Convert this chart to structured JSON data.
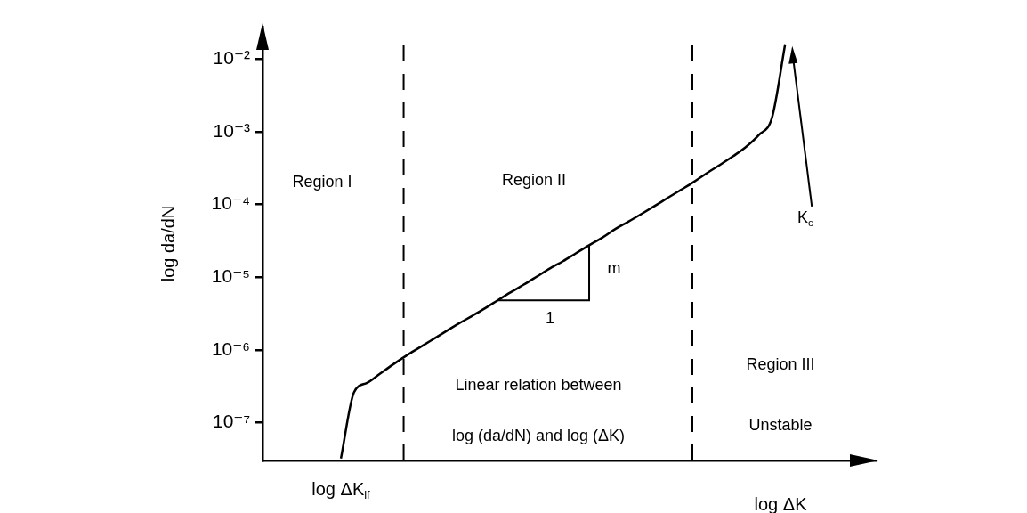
{
  "chart_data": {
    "type": "line",
    "xlabel": "log ΔK",
    "ylabel": "log da/dN",
    "categories": [
      null,
      null,
      null,
      null,
      null,
      null,
      null,
      null,
      null,
      null,
      null,
      null,
      null,
      null,
      null,
      null,
      null,
      null,
      null,
      null,
      null,
      null,
      null,
      null,
      null,
      null,
      null,
      null,
      null,
      null,
      null,
      null,
      null,
      null,
      null,
      null,
      null,
      null,
      null,
      null,
      null,
      null,
      null,
      null,
      null,
      null,
      null,
      null
    ],
    "ylim": [
      3.2e-08,
      0.028
    ],
    "yticks": [
      {
        "value": 1e-07,
        "label": "10⁻⁷"
      },
      {
        "value": 1e-06,
        "label": "10⁻⁶"
      },
      {
        "value": 1e-05,
        "label": "10⁻⁵"
      },
      {
        "value": 0.0001,
        "label": "10⁻⁴"
      },
      {
        "value": 0.001,
        "label": "10⁻³"
      },
      {
        "value": 0.01,
        "label": "10⁻²"
      }
    ],
    "log": "y",
    "grid": false,
    "marker": "none",
    "line_style": "solid",
    "series": [
      {
        "color": "#000000",
        "values": [
          null,
          null,
          null,
          null,
          null,
          null,
          3.2e-08,
          2.6e-07,
          3.5e-07,
          4.7e-07,
          6.3e-07,
          8.3e-07,
          1.07e-06,
          1.38e-06,
          1.78e-06,
          2.29e-06,
          2.9e-06,
          3.7e-06,
          4.8e-06,
          6.2e-06,
          7.9e-06,
          1.02e-05,
          1.32e-05,
          1.66e-05,
          2.14e-05,
          2.75e-05,
          3.5e-05,
          4.6e-05,
          5.8e-05,
          7.4e-05,
          9.5e-05,
          0.000123,
          0.000158,
          0.000204,
          0.00027,
          0.00035,
          0.00046,
          0.00062,
          0.00091,
          0.00158,
          0.016,
          null,
          null,
          null,
          null,
          null,
          null,
          null
        ]
      }
    ],
    "annotations": [
      "log ΔK$_{lf}$",
      "Region I",
      "Region II",
      "Region III",
      "Unstable",
      "Linear relation between",
      "log (da/dN) and log (ΔK)",
      "m",
      "1",
      "K$_{c}$"
    ]
  }
}
